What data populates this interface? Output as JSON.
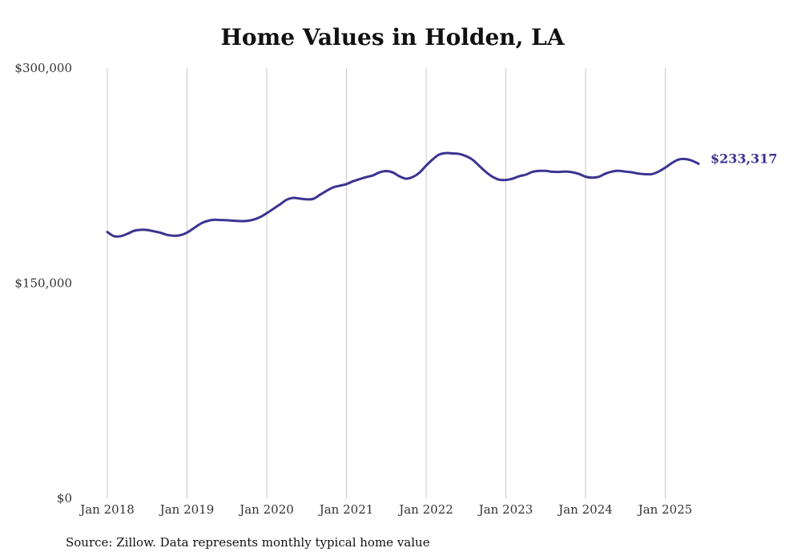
{
  "chart_data": {
    "type": "line",
    "title": "Home Values in Holden, LA",
    "xlabel": "",
    "ylabel": "",
    "ylim": [
      0,
      300000
    ],
    "y_ticks": [
      {
        "value": 0,
        "label": "$0"
      },
      {
        "value": 150000,
        "label": "$150,000"
      },
      {
        "value": 300000,
        "label": "$300,000"
      }
    ],
    "x_ticks": [
      {
        "value": "2018-01",
        "label": "Jan 2018"
      },
      {
        "value": "2019-01",
        "label": "Jan 2019"
      },
      {
        "value": "2020-01",
        "label": "Jan 2020"
      },
      {
        "value": "2021-01",
        "label": "Jan 2021"
      },
      {
        "value": "2022-01",
        "label": "Jan 2022"
      },
      {
        "value": "2023-01",
        "label": "Jan 2023"
      },
      {
        "value": "2024-01",
        "label": "Jan 2024"
      },
      {
        "value": "2025-01",
        "label": "Jan 2025"
      }
    ],
    "grid": "vertical",
    "line_color": "#3b3491",
    "series": [
      {
        "x": [
          "2018-01",
          "2018-02",
          "2018-03",
          "2018-04",
          "2018-05",
          "2018-06",
          "2018-07",
          "2018-08",
          "2018-09",
          "2018-10",
          "2018-11",
          "2018-12",
          "2019-01",
          "2019-02",
          "2019-03",
          "2019-04",
          "2019-05",
          "2019-06",
          "2019-07",
          "2019-08",
          "2019-09",
          "2019-10",
          "2019-11",
          "2019-12",
          "2020-01",
          "2020-02",
          "2020-03",
          "2020-04",
          "2020-05",
          "2020-06",
          "2020-07",
          "2020-08",
          "2020-09",
          "2020-10",
          "2020-11",
          "2020-12",
          "2021-01",
          "2021-02",
          "2021-03",
          "2021-04",
          "2021-05",
          "2021-06",
          "2021-07",
          "2021-08",
          "2021-09",
          "2021-10",
          "2021-11",
          "2021-12",
          "2022-01",
          "2022-02",
          "2022-03",
          "2022-04",
          "2022-05",
          "2022-06",
          "2022-07",
          "2022-08",
          "2022-09",
          "2022-10",
          "2022-11",
          "2022-12",
          "2023-01",
          "2023-02",
          "2023-03",
          "2023-04",
          "2023-05",
          "2023-06",
          "2023-07",
          "2023-08",
          "2023-09",
          "2023-10",
          "2023-11",
          "2023-12",
          "2024-01",
          "2024-02",
          "2024-03",
          "2024-04",
          "2024-05",
          "2024-06",
          "2024-07",
          "2024-08",
          "2024-09",
          "2024-10",
          "2024-11",
          "2024-12",
          "2025-01",
          "2025-02",
          "2025-03",
          "2025-04",
          "2025-05",
          "2025-06"
        ],
        "values": [
          185700,
          182800,
          182800,
          184400,
          186500,
          187200,
          187100,
          186200,
          185200,
          183700,
          183100,
          183500,
          185300,
          188300,
          191400,
          193300,
          194200,
          194100,
          193900,
          193600,
          193300,
          193400,
          194300,
          196100,
          198800,
          201900,
          205000,
          208200,
          209500,
          209000,
          208500,
          208800,
          211600,
          214400,
          216800,
          218000,
          219100,
          221100,
          222600,
          224000,
          225200,
          227300,
          228200,
          227200,
          224500,
          222900,
          224100,
          227100,
          232000,
          236400,
          239800,
          240700,
          240500,
          240100,
          238600,
          236100,
          231800,
          227600,
          224200,
          222200,
          222000,
          222900,
          224600,
          225700,
          227600,
          228300,
          228300,
          227700,
          227600,
          227900,
          227400,
          226200,
          224300,
          223600,
          224200,
          226400,
          227900,
          228400,
          227800,
          227300,
          226400,
          226000,
          226100,
          227800,
          230600,
          233800,
          236200,
          236600,
          235500,
          233317
        ]
      }
    ],
    "end_label": "$233,317",
    "source_note": "Source: Zillow. Data represents monthly typical home value"
  }
}
